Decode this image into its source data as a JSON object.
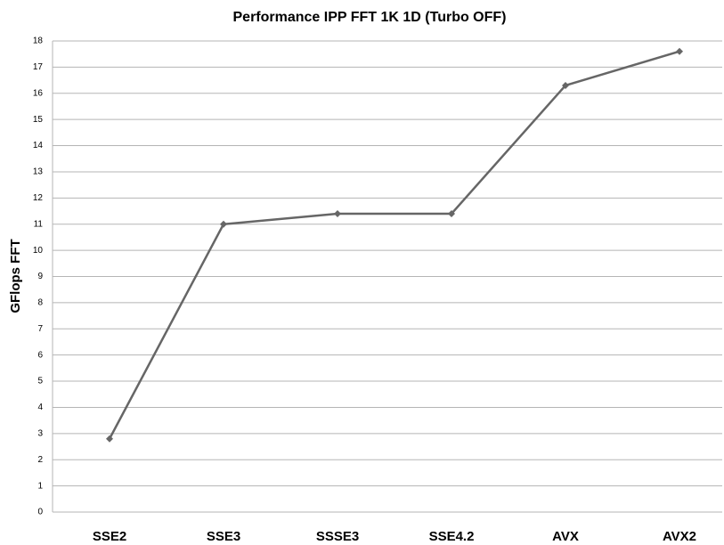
{
  "chart_data": {
    "type": "line",
    "title": "Performance IPP FFT 1K 1D (Turbo OFF)",
    "ylabel": "GFlops FFT",
    "categories": [
      "SSE2",
      "SSE3",
      "SSSE3",
      "SSE4.2",
      "AVX",
      "AVX2"
    ],
    "values": [
      2.8,
      11.0,
      11.4,
      11.4,
      16.3,
      17.6
    ],
    "color": "#666666",
    "ylim": [
      0,
      18
    ],
    "yticks": [
      0,
      1,
      2,
      3,
      4,
      5,
      6,
      7,
      8,
      9,
      10,
      11,
      12,
      13,
      14,
      15,
      16,
      17,
      18
    ],
    "grid": true
  }
}
